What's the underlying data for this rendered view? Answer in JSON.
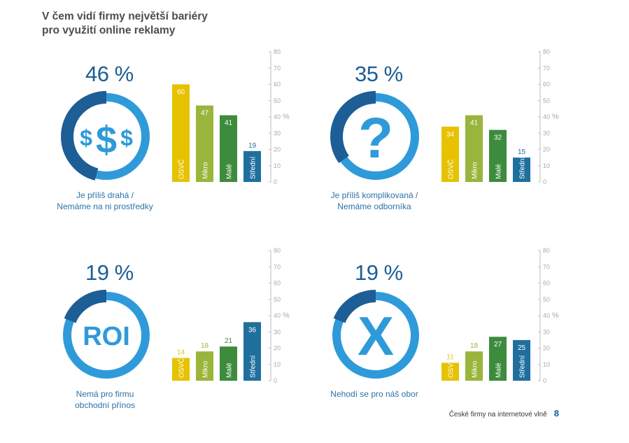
{
  "title_lines": [
    "V čem vidí firmy největší bariéry",
    "pro využití online reklamy"
  ],
  "colors": {
    "osvc": "#e6c200",
    "mikro": "#99b53b",
    "male": "#3d8b3d",
    "stredni": "#1f6f9e",
    "ring_light": "#2f9ad9",
    "ring_dark": "#1d5e96",
    "axis": "#bbbbbb"
  },
  "panels": [
    {
      "percent_label": "46 %",
      "percent": 46,
      "icon": "dollar-icon",
      "icon_text": "$$$",
      "caption_lines": [
        "Je příliš drahá /",
        "Nemáme na ni prostředky"
      ]
    },
    {
      "percent_label": "35 %",
      "percent": 35,
      "icon": "question-icon",
      "icon_text": "?",
      "caption_lines": [
        "Je příliš komplikovaná /",
        "Nemáme odborníka"
      ]
    },
    {
      "percent_label": "19 %",
      "percent": 19,
      "icon": "roi-icon",
      "icon_text": "ROI",
      "caption_lines": [
        "Nemá pro firmu",
        "obchodní přínos"
      ]
    },
    {
      "percent_label": "19 %",
      "percent": 19,
      "icon": "x-icon",
      "icon_text": "X",
      "caption_lines": [
        "Nehodí se pro náš obor"
      ]
    }
  ],
  "chart_data": [
    {
      "type": "bar",
      "categories": [
        "OSVČ",
        "Mikro",
        "Malé",
        "Střední"
      ],
      "values": [
        60,
        47,
        41,
        19
      ],
      "ylabel": "%",
      "ylim": [
        0,
        80
      ],
      "yticks": [
        0,
        10,
        20,
        30,
        40,
        50,
        60,
        70,
        80
      ],
      "grid": false
    },
    {
      "type": "bar",
      "categories": [
        "OSVČ",
        "Mikro",
        "Malé",
        "Střední"
      ],
      "values": [
        34,
        41,
        32,
        15
      ],
      "ylabel": "%",
      "ylim": [
        0,
        80
      ],
      "yticks": [
        0,
        10,
        20,
        30,
        40,
        50,
        60,
        70,
        80
      ],
      "grid": false
    },
    {
      "type": "bar",
      "categories": [
        "OSVČ",
        "Mikro",
        "Malé",
        "Střední"
      ],
      "values": [
        14,
        18,
        21,
        36
      ],
      "ylabel": "%",
      "ylim": [
        0,
        80
      ],
      "yticks": [
        0,
        10,
        20,
        30,
        40,
        50,
        60,
        70,
        80
      ],
      "grid": false
    },
    {
      "type": "bar",
      "categories": [
        "OSVČ",
        "Mikro",
        "Malé",
        "Střední"
      ],
      "values": [
        11,
        18,
        27,
        25
      ],
      "ylabel": "%",
      "ylim": [
        0,
        80
      ],
      "yticks": [
        0,
        10,
        20,
        30,
        40,
        50,
        60,
        70,
        80
      ],
      "grid": false
    }
  ],
  "footer": {
    "text": "České firmy na internetové vlně",
    "page": "8"
  }
}
